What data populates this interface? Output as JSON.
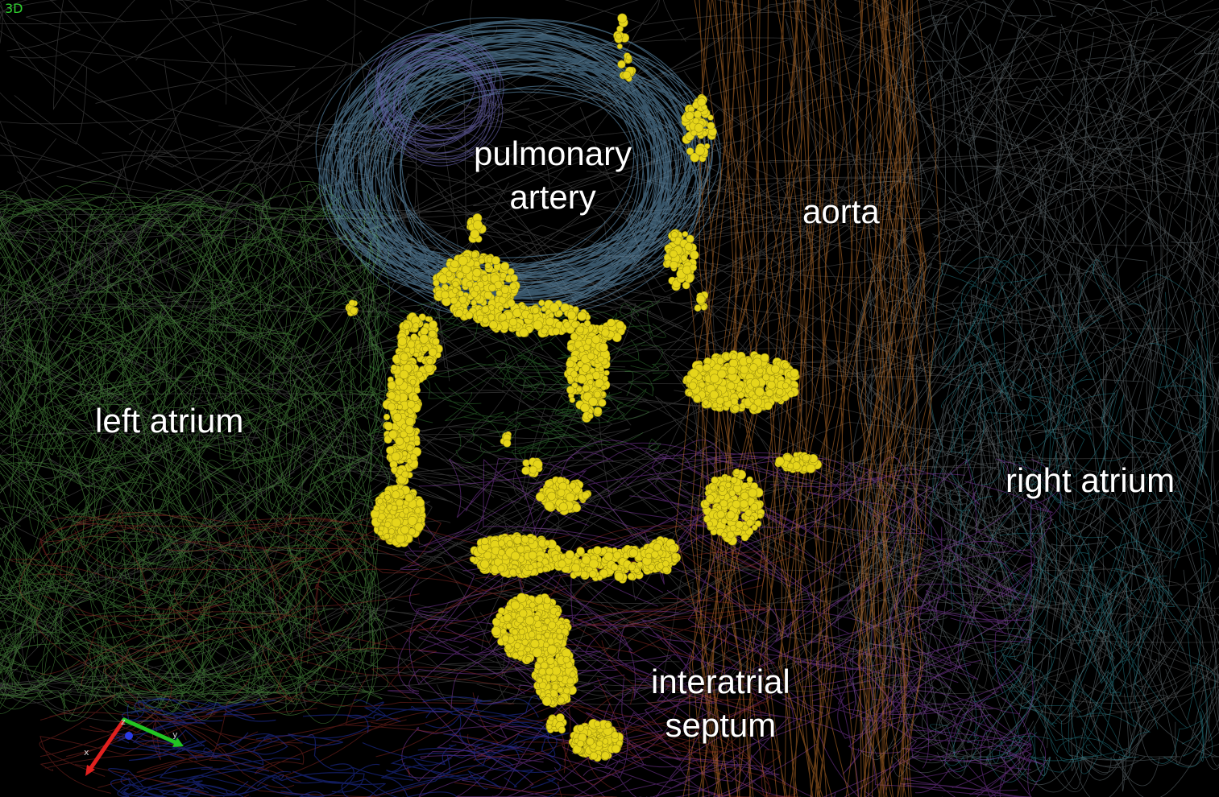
{
  "viewport": {
    "view_mode": "3D",
    "colors": {
      "background": "#000000",
      "highlight_points": "#e6d51a",
      "left_atrium_mesh": "#5aa84a",
      "pulmonary_artery_mesh": "#6a9fc4",
      "aorta_mesh": "#c0722a",
      "right_atrium_mesh": "#7f8f95",
      "septum_mesh": "#8a3fb0"
    }
  },
  "labels": {
    "pulmonary_artery_line1": "pulmonary",
    "pulmonary_artery_line2": "artery",
    "aorta": "aorta",
    "left_atrium": "left atrium",
    "right_atrium": "right atrium",
    "interatrial_septum_line1": "interatrial",
    "interatrial_septum_line2": "septum"
  },
  "axes": {
    "x": "x",
    "y": "y",
    "z": "z",
    "x_color": "#e0201e",
    "y_color": "#22c422",
    "z_color": "#2a3ae6"
  }
}
